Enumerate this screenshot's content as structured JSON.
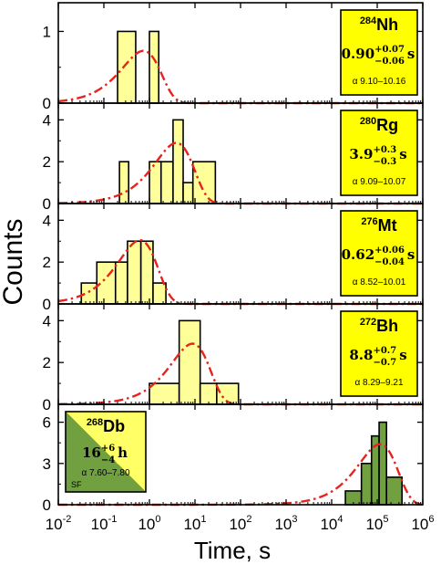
{
  "chart_data": {
    "type": "bar",
    "ylabel": "Counts",
    "xlabel": "Time, s",
    "xscale": "log",
    "xlim": [
      0.01,
      1000000
    ],
    "xticks": [
      {
        "value": 0.01,
        "base": "10",
        "exp": "-2"
      },
      {
        "value": 0.1,
        "base": "10",
        "exp": "-1"
      },
      {
        "value": 1,
        "base": "10",
        "exp": "0"
      },
      {
        "value": 10,
        "base": "10",
        "exp": "1"
      },
      {
        "value": 100,
        "base": "10",
        "exp": "2"
      },
      {
        "value": 1000,
        "base": "10",
        "exp": "3"
      },
      {
        "value": 10000,
        "base": "10",
        "exp": "4"
      },
      {
        "value": 100000,
        "base": "10",
        "exp": "5"
      },
      {
        "value": 1000000,
        "base": "10",
        "exp": "6"
      }
    ],
    "panels": [
      {
        "nuclide": {
          "mass": "284",
          "symbol": "Nh"
        },
        "halflife": {
          "value": "0.90",
          "plus": "+0.07",
          "minus": "−0.06",
          "unit": "s"
        },
        "alpha": "α 9.10–10.16",
        "ylim": [
          0,
          1.4
        ],
        "yticks": [
          0,
          1
        ],
        "fill": "#ffff99",
        "bins": [
          [
            0.2,
            0.5,
            1
          ],
          [
            1.0,
            1.6,
            1
          ]
        ],
        "fit": {
          "peak": 0.74,
          "amplitude": 0.73
        }
      },
      {
        "nuclide": {
          "mass": "280",
          "symbol": "Rg"
        },
        "halflife": {
          "value": "3.9",
          "plus": "+0.3",
          "minus": "−0.3",
          "unit": "s"
        },
        "alpha": "α 9.09–10.07",
        "ylim": [
          0,
          4.8
        ],
        "yticks": [
          0,
          2,
          4
        ],
        "fill": "#ffff99",
        "bins": [
          [
            0.22,
            0.35,
            2
          ],
          [
            0.35,
            1.0,
            0
          ],
          [
            1.0,
            1.8,
            2
          ],
          [
            1.8,
            3.3,
            2
          ],
          [
            3.3,
            5.5,
            4
          ],
          [
            5.5,
            9.0,
            1
          ],
          [
            9.0,
            28,
            2
          ]
        ],
        "fit": {
          "peak": 3.9,
          "amplitude": 2.9
        }
      },
      {
        "nuclide": {
          "mass": "276",
          "symbol": "Mt"
        },
        "halflife": {
          "value": "0.62",
          "plus": "+0.06",
          "minus": "−0.04",
          "unit": "s"
        },
        "alpha": "α 8.52–10.01",
        "ylim": [
          0,
          4.8
        ],
        "yticks": [
          0,
          2,
          4
        ],
        "fill": "#ffff99",
        "bins": [
          [
            0.032,
            0.07,
            1
          ],
          [
            0.07,
            0.18,
            2
          ],
          [
            0.18,
            0.33,
            2
          ],
          [
            0.33,
            0.65,
            3
          ],
          [
            0.65,
            1.2,
            3
          ],
          [
            1.2,
            2.3,
            1
          ]
        ],
        "fit": {
          "peak": 0.62,
          "amplitude": 3.05
        }
      },
      {
        "nuclide": {
          "mass": "272",
          "symbol": "Bh"
        },
        "halflife": {
          "value": "8.8",
          "plus": "+0.7",
          "minus": "−0.7",
          "unit": "s"
        },
        "alpha": "α 8.29–9.21",
        "ylim": [
          0,
          4.8
        ],
        "yticks": [
          0,
          2,
          4
        ],
        "fill": "#ffff99",
        "bins": [
          [
            1.0,
            4.5,
            1
          ],
          [
            4.5,
            13,
            4
          ],
          [
            13,
            30,
            1
          ],
          [
            30,
            90,
            1
          ]
        ],
        "fit": {
          "peak": 8.8,
          "amplitude": 2.9
        }
      },
      {
        "nuclide": {
          "mass": "268",
          "symbol": "Db"
        },
        "halflife": {
          "value": "16",
          "plus": "+6",
          "minus": "−4",
          "unit": "h"
        },
        "alpha": "α 7.60–7.80",
        "sf": "SF",
        "ylim": [
          0,
          7.3
        ],
        "yticks": [
          0,
          3,
          6
        ],
        "fill": "#70a040",
        "bins": [
          [
            20000,
            45000,
            1
          ],
          [
            45000,
            75000,
            3
          ],
          [
            75000,
            110000,
            5
          ],
          [
            110000,
            160000,
            6
          ],
          [
            160000,
            350000,
            2
          ]
        ],
        "fit": {
          "peak": 115000,
          "amplitude": 4.4
        }
      }
    ]
  }
}
